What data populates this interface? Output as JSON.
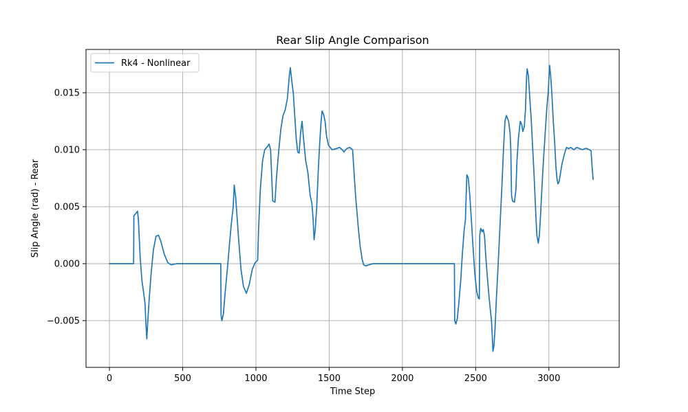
{
  "chart_data": {
    "type": "line",
    "title": "Rear Slip Angle Comparison",
    "xlabel": "Time Step",
    "ylabel": "Slip Angle (rad) - Rear",
    "xlim": [
      -160,
      3480
    ],
    "ylim": [
      -0.0091,
      0.0188
    ],
    "xticks": [
      0,
      500,
      1000,
      1500,
      2000,
      2500,
      3000
    ],
    "xtick_labels": [
      "0",
      "500",
      "1000",
      "1500",
      "2000",
      "2500",
      "3000"
    ],
    "yticks": [
      -0.005,
      0.0,
      0.005,
      0.01,
      0.015
    ],
    "ytick_labels": [
      "−0.005",
      "0.000",
      "0.005",
      "0.010",
      "0.015"
    ],
    "grid": true,
    "legend_position": "top-left",
    "series": [
      {
        "name": "Rk4 - Nonlinear",
        "color": "#1f77b4",
        "points": [
          [
            0,
            0.0
          ],
          [
            165,
            0.0
          ],
          [
            167,
            0.0042
          ],
          [
            180,
            0.0044
          ],
          [
            192,
            0.0046
          ],
          [
            198,
            0.0038
          ],
          [
            210,
            0.0005
          ],
          [
            222,
            -0.0015
          ],
          [
            235,
            -0.0027
          ],
          [
            243,
            -0.0035
          ],
          [
            248,
            -0.005
          ],
          [
            255,
            -0.0066
          ],
          [
            262,
            -0.005
          ],
          [
            272,
            -0.003
          ],
          [
            285,
            -0.0008
          ],
          [
            300,
            0.0012
          ],
          [
            318,
            0.0024
          ],
          [
            335,
            0.0025
          ],
          [
            350,
            0.002
          ],
          [
            375,
            0.0008
          ],
          [
            398,
            0.0001
          ],
          [
            420,
            -0.0001
          ],
          [
            460,
            0.0
          ],
          [
            760,
            0.0
          ],
          [
            762,
            -0.0045
          ],
          [
            768,
            -0.005
          ],
          [
            778,
            -0.0044
          ],
          [
            790,
            -0.0025
          ],
          [
            805,
            -0.0005
          ],
          [
            818,
            0.0015
          ],
          [
            832,
            0.0035
          ],
          [
            845,
            0.005
          ],
          [
            852,
            0.0069
          ],
          [
            862,
            0.0058
          ],
          [
            880,
            0.0025
          ],
          [
            898,
            -0.0005
          ],
          [
            915,
            -0.002
          ],
          [
            935,
            -0.0026
          ],
          [
            955,
            -0.0018
          ],
          [
            975,
            -0.0005
          ],
          [
            995,
            0.0001
          ],
          [
            1012,
            0.0003
          ],
          [
            1018,
            0.003
          ],
          [
            1030,
            0.0065
          ],
          [
            1045,
            0.009
          ],
          [
            1060,
            0.01
          ],
          [
            1080,
            0.0103
          ],
          [
            1090,
            0.0105
          ],
          [
            1100,
            0.01
          ],
          [
            1115,
            0.0055
          ],
          [
            1130,
            0.0054
          ],
          [
            1140,
            0.0075
          ],
          [
            1155,
            0.0098
          ],
          [
            1170,
            0.0118
          ],
          [
            1185,
            0.013
          ],
          [
            1200,
            0.0135
          ],
          [
            1215,
            0.0145
          ],
          [
            1228,
            0.0165
          ],
          [
            1235,
            0.0172
          ],
          [
            1245,
            0.016
          ],
          [
            1255,
            0.015
          ],
          [
            1265,
            0.013
          ],
          [
            1275,
            0.011
          ],
          [
            1285,
            0.0098
          ],
          [
            1295,
            0.0097
          ],
          [
            1305,
            0.0115
          ],
          [
            1315,
            0.0125
          ],
          [
            1325,
            0.011
          ],
          [
            1340,
            0.009
          ],
          [
            1355,
            0.008
          ],
          [
            1370,
            0.006
          ],
          [
            1382,
            0.0053
          ],
          [
            1390,
            0.004
          ],
          [
            1397,
            0.0021
          ],
          [
            1405,
            0.003
          ],
          [
            1415,
            0.005
          ],
          [
            1425,
            0.008
          ],
          [
            1435,
            0.0105
          ],
          [
            1445,
            0.0125
          ],
          [
            1452,
            0.0134
          ],
          [
            1462,
            0.0131
          ],
          [
            1472,
            0.0125
          ],
          [
            1482,
            0.0112
          ],
          [
            1495,
            0.0104
          ],
          [
            1520,
            0.01
          ],
          [
            1550,
            0.0101
          ],
          [
            1570,
            0.0102
          ],
          [
            1590,
            0.01
          ],
          [
            1600,
            0.0098
          ],
          [
            1620,
            0.0101
          ],
          [
            1640,
            0.0102
          ],
          [
            1660,
            0.01
          ],
          [
            1670,
            0.008
          ],
          [
            1680,
            0.006
          ],
          [
            1690,
            0.0045
          ],
          [
            1700,
            0.003
          ],
          [
            1712,
            0.0015
          ],
          [
            1725,
            0.0004
          ],
          [
            1735,
            -0.0001
          ],
          [
            1750,
            -0.0002
          ],
          [
            1770,
            -0.0001
          ],
          [
            1800,
            0.0
          ],
          [
            2355,
            0.0
          ],
          [
            2357,
            -0.005
          ],
          [
            2365,
            -0.0053
          ],
          [
            2375,
            -0.0048
          ],
          [
            2385,
            -0.0035
          ],
          [
            2398,
            -0.0015
          ],
          [
            2410,
            0.001
          ],
          [
            2422,
            0.003
          ],
          [
            2430,
            0.0038
          ],
          [
            2440,
            0.0078
          ],
          [
            2450,
            0.0075
          ],
          [
            2460,
            0.006
          ],
          [
            2470,
            0.004
          ],
          [
            2482,
            0.0015
          ],
          [
            2495,
            -0.001
          ],
          [
            2508,
            -0.0025
          ],
          [
            2518,
            -0.003
          ],
          [
            2525,
            -0.0031
          ],
          [
            2528,
            0.0025
          ],
          [
            2535,
            0.0031
          ],
          [
            2545,
            0.0028
          ],
          [
            2552,
            0.003
          ],
          [
            2560,
            0.0025
          ],
          [
            2570,
            0.0005
          ],
          [
            2582,
            -0.0015
          ],
          [
            2592,
            -0.003
          ],
          [
            2600,
            -0.004
          ],
          [
            2608,
            -0.005
          ],
          [
            2614,
            -0.0065
          ],
          [
            2618,
            -0.0077
          ],
          [
            2625,
            -0.0072
          ],
          [
            2632,
            -0.0058
          ],
          [
            2640,
            -0.0035
          ],
          [
            2652,
            -0.0005
          ],
          [
            2665,
            0.003
          ],
          [
            2680,
            0.007
          ],
          [
            2690,
            0.01
          ],
          [
            2700,
            0.0125
          ],
          [
            2710,
            0.013
          ],
          [
            2725,
            0.0125
          ],
          [
            2735,
            0.0115
          ],
          [
            2740,
            0.01
          ],
          [
            2745,
            0.006
          ],
          [
            2752,
            0.0055
          ],
          [
            2765,
            0.0054
          ],
          [
            2775,
            0.0065
          ],
          [
            2782,
            0.009
          ],
          [
            2792,
            0.011
          ],
          [
            2805,
            0.0125
          ],
          [
            2815,
            0.0122
          ],
          [
            2822,
            0.0116
          ],
          [
            2832,
            0.012
          ],
          [
            2840,
            0.0135
          ],
          [
            2848,
            0.0165
          ],
          [
            2852,
            0.0171
          ],
          [
            2860,
            0.0165
          ],
          [
            2870,
            0.0145
          ],
          [
            2880,
            0.0125
          ],
          [
            2890,
            0.01
          ],
          [
            2898,
            0.008
          ],
          [
            2905,
            0.006
          ],
          [
            2912,
            0.004
          ],
          [
            2918,
            0.0025
          ],
          [
            2928,
            0.0018
          ],
          [
            2935,
            0.0025
          ],
          [
            2942,
            0.004
          ],
          [
            2950,
            0.006
          ],
          [
            2958,
            0.008
          ],
          [
            2965,
            0.0095
          ],
          [
            2975,
            0.0115
          ],
          [
            2985,
            0.0135
          ],
          [
            2995,
            0.015
          ],
          [
            3005,
            0.0174
          ],
          [
            3012,
            0.0165
          ],
          [
            3020,
            0.015
          ],
          [
            3030,
            0.0125
          ],
          [
            3040,
            0.0105
          ],
          [
            3048,
            0.0085
          ],
          [
            3055,
            0.0075
          ],
          [
            3062,
            0.007
          ],
          [
            3070,
            0.0072
          ],
          [
            3080,
            0.008
          ],
          [
            3090,
            0.0088
          ],
          [
            3100,
            0.0093
          ],
          [
            3110,
            0.0098
          ],
          [
            3120,
            0.0102
          ],
          [
            3135,
            0.0101
          ],
          [
            3150,
            0.0102
          ],
          [
            3170,
            0.01
          ],
          [
            3190,
            0.0102
          ],
          [
            3210,
            0.0101
          ],
          [
            3230,
            0.01
          ],
          [
            3245,
            0.0101
          ],
          [
            3260,
            0.0101
          ],
          [
            3275,
            0.01
          ],
          [
            3288,
            0.0099
          ],
          [
            3295,
            0.0085
          ],
          [
            3302,
            0.0074
          ]
        ]
      }
    ]
  }
}
